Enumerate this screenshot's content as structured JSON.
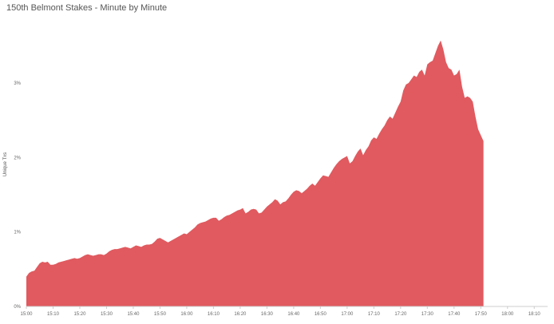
{
  "chart_data": {
    "type": "area",
    "title": "150th Belmont Stakes - Minute by Minute",
    "xlabel": "",
    "ylabel": "Unique Txs",
    "color": "#E05A5F",
    "x_ticks": [
      "15:00",
      "15:10",
      "15:20",
      "15:30",
      "15:40",
      "15:50",
      "16:00",
      "16:10",
      "16:20",
      "16:30",
      "16:40",
      "16:50",
      "17:00",
      "17:10",
      "17:20",
      "17:30",
      "17:40",
      "17:50",
      "18:00",
      "18:10"
    ],
    "y_ticks": [
      "0%",
      "1%",
      "2%",
      "3%"
    ],
    "ylim": [
      0,
      3.9
    ],
    "x_start": "15:00",
    "x_end": "18:15",
    "points": [
      {
        "t": "15:00",
        "v": 0.4
      },
      {
        "t": "15:01",
        "v": 0.45
      },
      {
        "t": "15:02",
        "v": 0.47
      },
      {
        "t": "15:03",
        "v": 0.48
      },
      {
        "t": "15:04",
        "v": 0.53
      },
      {
        "t": "15:05",
        "v": 0.58
      },
      {
        "t": "15:06",
        "v": 0.6
      },
      {
        "t": "15:07",
        "v": 0.59
      },
      {
        "t": "15:08",
        "v": 0.6
      },
      {
        "t": "15:09",
        "v": 0.56
      },
      {
        "t": "15:10",
        "v": 0.56
      },
      {
        "t": "15:11",
        "v": 0.57
      },
      {
        "t": "15:12",
        "v": 0.59
      },
      {
        "t": "15:13",
        "v": 0.6
      },
      {
        "t": "15:14",
        "v": 0.61
      },
      {
        "t": "15:15",
        "v": 0.62
      },
      {
        "t": "15:16",
        "v": 0.63
      },
      {
        "t": "15:17",
        "v": 0.64
      },
      {
        "t": "15:18",
        "v": 0.65
      },
      {
        "t": "15:19",
        "v": 0.64
      },
      {
        "t": "15:20",
        "v": 0.65
      },
      {
        "t": "15:21",
        "v": 0.67
      },
      {
        "t": "15:22",
        "v": 0.69
      },
      {
        "t": "15:23",
        "v": 0.7
      },
      {
        "t": "15:24",
        "v": 0.69
      },
      {
        "t": "15:25",
        "v": 0.68
      },
      {
        "t": "15:26",
        "v": 0.69
      },
      {
        "t": "15:27",
        "v": 0.7
      },
      {
        "t": "15:28",
        "v": 0.7
      },
      {
        "t": "15:29",
        "v": 0.69
      },
      {
        "t": "15:30",
        "v": 0.71
      },
      {
        "t": "15:31",
        "v": 0.74
      },
      {
        "t": "15:32",
        "v": 0.76
      },
      {
        "t": "15:33",
        "v": 0.77
      },
      {
        "t": "15:34",
        "v": 0.77
      },
      {
        "t": "15:35",
        "v": 0.78
      },
      {
        "t": "15:36",
        "v": 0.79
      },
      {
        "t": "15:37",
        "v": 0.8
      },
      {
        "t": "15:38",
        "v": 0.79
      },
      {
        "t": "15:39",
        "v": 0.78
      },
      {
        "t": "15:40",
        "v": 0.8
      },
      {
        "t": "15:41",
        "v": 0.82
      },
      {
        "t": "15:42",
        "v": 0.81
      },
      {
        "t": "15:43",
        "v": 0.8
      },
      {
        "t": "15:44",
        "v": 0.82
      },
      {
        "t": "15:45",
        "v": 0.83
      },
      {
        "t": "15:46",
        "v": 0.83
      },
      {
        "t": "15:47",
        "v": 0.84
      },
      {
        "t": "15:48",
        "v": 0.87
      },
      {
        "t": "15:49",
        "v": 0.91
      },
      {
        "t": "15:50",
        "v": 0.92
      },
      {
        "t": "15:51",
        "v": 0.9
      },
      {
        "t": "15:52",
        "v": 0.88
      },
      {
        "t": "15:53",
        "v": 0.86
      },
      {
        "t": "15:54",
        "v": 0.88
      },
      {
        "t": "15:55",
        "v": 0.9
      },
      {
        "t": "15:56",
        "v": 0.92
      },
      {
        "t": "15:57",
        "v": 0.94
      },
      {
        "t": "15:58",
        "v": 0.96
      },
      {
        "t": "15:59",
        "v": 0.98
      },
      {
        "t": "16:00",
        "v": 0.97
      },
      {
        "t": "16:01",
        "v": 1.0
      },
      {
        "t": "16:02",
        "v": 1.03
      },
      {
        "t": "16:03",
        "v": 1.06
      },
      {
        "t": "16:04",
        "v": 1.1
      },
      {
        "t": "16:05",
        "v": 1.12
      },
      {
        "t": "16:06",
        "v": 1.13
      },
      {
        "t": "16:07",
        "v": 1.14
      },
      {
        "t": "16:08",
        "v": 1.16
      },
      {
        "t": "16:09",
        "v": 1.18
      },
      {
        "t": "16:10",
        "v": 1.19
      },
      {
        "t": "16:11",
        "v": 1.19
      },
      {
        "t": "16:12",
        "v": 1.15
      },
      {
        "t": "16:13",
        "v": 1.17
      },
      {
        "t": "16:14",
        "v": 1.2
      },
      {
        "t": "16:15",
        "v": 1.22
      },
      {
        "t": "16:16",
        "v": 1.23
      },
      {
        "t": "16:17",
        "v": 1.25
      },
      {
        "t": "16:18",
        "v": 1.27
      },
      {
        "t": "16:19",
        "v": 1.29
      },
      {
        "t": "16:20",
        "v": 1.3
      },
      {
        "t": "16:21",
        "v": 1.32
      },
      {
        "t": "16:22",
        "v": 1.25
      },
      {
        "t": "16:23",
        "v": 1.27
      },
      {
        "t": "16:24",
        "v": 1.3
      },
      {
        "t": "16:25",
        "v": 1.31
      },
      {
        "t": "16:26",
        "v": 1.3
      },
      {
        "t": "16:27",
        "v": 1.25
      },
      {
        "t": "16:28",
        "v": 1.26
      },
      {
        "t": "16:29",
        "v": 1.3
      },
      {
        "t": "16:30",
        "v": 1.34
      },
      {
        "t": "16:31",
        "v": 1.37
      },
      {
        "t": "16:32",
        "v": 1.4
      },
      {
        "t": "16:33",
        "v": 1.44
      },
      {
        "t": "16:34",
        "v": 1.42
      },
      {
        "t": "16:35",
        "v": 1.37
      },
      {
        "t": "16:36",
        "v": 1.4
      },
      {
        "t": "16:37",
        "v": 1.41
      },
      {
        "t": "16:38",
        "v": 1.45
      },
      {
        "t": "16:39",
        "v": 1.5
      },
      {
        "t": "16:40",
        "v": 1.54
      },
      {
        "t": "16:41",
        "v": 1.56
      },
      {
        "t": "16:42",
        "v": 1.55
      },
      {
        "t": "16:43",
        "v": 1.52
      },
      {
        "t": "16:44",
        "v": 1.55
      },
      {
        "t": "16:45",
        "v": 1.58
      },
      {
        "t": "16:46",
        "v": 1.62
      },
      {
        "t": "16:47",
        "v": 1.65
      },
      {
        "t": "16:48",
        "v": 1.62
      },
      {
        "t": "16:49",
        "v": 1.67
      },
      {
        "t": "16:50",
        "v": 1.72
      },
      {
        "t": "16:51",
        "v": 1.76
      },
      {
        "t": "16:52",
        "v": 1.75
      },
      {
        "t": "16:53",
        "v": 1.74
      },
      {
        "t": "16:54",
        "v": 1.8
      },
      {
        "t": "16:55",
        "v": 1.86
      },
      {
        "t": "16:56",
        "v": 1.91
      },
      {
        "t": "16:57",
        "v": 1.95
      },
      {
        "t": "16:58",
        "v": 1.98
      },
      {
        "t": "16:59",
        "v": 2.0
      },
      {
        "t": "17:00",
        "v": 2.02
      },
      {
        "t": "17:01",
        "v": 1.92
      },
      {
        "t": "17:02",
        "v": 1.95
      },
      {
        "t": "17:03",
        "v": 2.02
      },
      {
        "t": "17:04",
        "v": 2.08
      },
      {
        "t": "17:05",
        "v": 2.12
      },
      {
        "t": "17:06",
        "v": 2.03
      },
      {
        "t": "17:07",
        "v": 2.1
      },
      {
        "t": "17:08",
        "v": 2.15
      },
      {
        "t": "17:09",
        "v": 2.23
      },
      {
        "t": "17:10",
        "v": 2.27
      },
      {
        "t": "17:11",
        "v": 2.25
      },
      {
        "t": "17:12",
        "v": 2.32
      },
      {
        "t": "17:13",
        "v": 2.38
      },
      {
        "t": "17:14",
        "v": 2.43
      },
      {
        "t": "17:15",
        "v": 2.5
      },
      {
        "t": "17:16",
        "v": 2.55
      },
      {
        "t": "17:17",
        "v": 2.52
      },
      {
        "t": "17:18",
        "v": 2.6
      },
      {
        "t": "17:19",
        "v": 2.68
      },
      {
        "t": "17:20",
        "v": 2.75
      },
      {
        "t": "17:21",
        "v": 2.9
      },
      {
        "t": "17:22",
        "v": 2.98
      },
      {
        "t": "17:23",
        "v": 3.0
      },
      {
        "t": "17:24",
        "v": 3.05
      },
      {
        "t": "17:25",
        "v": 3.1
      },
      {
        "t": "17:26",
        "v": 3.08
      },
      {
        "t": "17:27",
        "v": 3.15
      },
      {
        "t": "17:28",
        "v": 3.18
      },
      {
        "t": "17:29",
        "v": 3.1
      },
      {
        "t": "17:30",
        "v": 3.25
      },
      {
        "t": "17:31",
        "v": 3.28
      },
      {
        "t": "17:32",
        "v": 3.3
      },
      {
        "t": "17:33",
        "v": 3.4
      },
      {
        "t": "17:34",
        "v": 3.5
      },
      {
        "t": "17:35",
        "v": 3.57
      },
      {
        "t": "17:36",
        "v": 3.45
      },
      {
        "t": "17:37",
        "v": 3.28
      },
      {
        "t": "17:38",
        "v": 3.2
      },
      {
        "t": "17:39",
        "v": 3.18
      },
      {
        "t": "17:40",
        "v": 3.1
      },
      {
        "t": "17:41",
        "v": 3.12
      },
      {
        "t": "17:42",
        "v": 3.18
      },
      {
        "t": "17:43",
        "v": 2.95
      },
      {
        "t": "17:44",
        "v": 2.8
      },
      {
        "t": "17:45",
        "v": 2.82
      },
      {
        "t": "17:46",
        "v": 2.8
      },
      {
        "t": "17:47",
        "v": 2.75
      },
      {
        "t": "17:48",
        "v": 2.55
      },
      {
        "t": "17:49",
        "v": 2.38
      },
      {
        "t": "17:50",
        "v": 2.3
      },
      {
        "t": "17:51",
        "v": 2.22
      }
    ]
  }
}
